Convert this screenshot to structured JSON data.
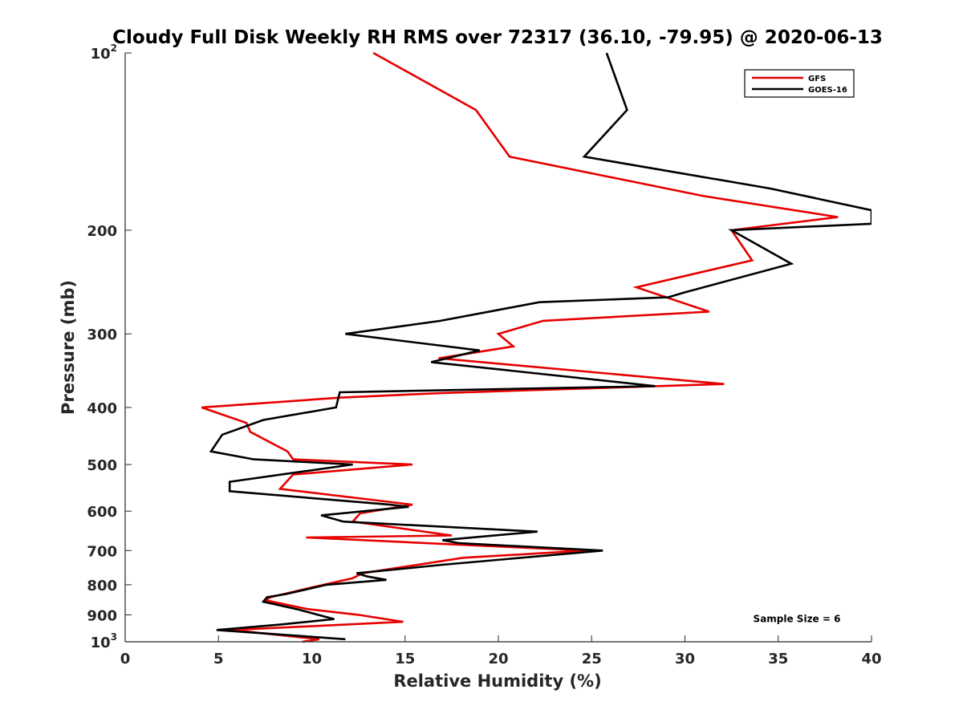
{
  "chart_data": {
    "type": "line",
    "title": "Cloudy Full Disk Weekly RH RMS over 72317 (36.10, -79.95) @ 2020-06-13",
    "xlabel": "Relative Humidity (%)",
    "ylabel": "Pressure (mb)",
    "xlim": [
      0,
      40
    ],
    "ylim": [
      100,
      1000
    ],
    "yscale": "log",
    "y_reversed": true,
    "grid": false,
    "legend_position": "top-right",
    "x_ticks": [
      {
        "value": 0,
        "label": "0"
      },
      {
        "value": 5,
        "label": "5"
      },
      {
        "value": 10,
        "label": "10"
      },
      {
        "value": 15,
        "label": "15"
      },
      {
        "value": 20,
        "label": "20"
      },
      {
        "value": 25,
        "label": "25"
      },
      {
        "value": 30,
        "label": "30"
      },
      {
        "value": 35,
        "label": "35"
      },
      {
        "value": 40,
        "label": "40"
      }
    ],
    "y_ticks": [
      {
        "value": 100,
        "base": "10",
        "exp": "2"
      },
      {
        "value": 200,
        "base": "200",
        "exp": ""
      },
      {
        "value": 300,
        "base": "300",
        "exp": ""
      },
      {
        "value": 400,
        "base": "400",
        "exp": ""
      },
      {
        "value": 500,
        "base": "500",
        "exp": ""
      },
      {
        "value": 600,
        "base": "600",
        "exp": ""
      },
      {
        "value": 700,
        "base": "700",
        "exp": ""
      },
      {
        "value": 800,
        "base": "800",
        "exp": ""
      },
      {
        "value": 900,
        "base": "900",
        "exp": ""
      },
      {
        "value": 1000,
        "base": "10",
        "exp": "3"
      }
    ],
    "series": [
      {
        "name": "GFS",
        "color": "#e60000",
        "points": [
          [
            13.3,
            100
          ],
          [
            18.8,
            125
          ],
          [
            20.6,
            150
          ],
          [
            31.0,
            175
          ],
          [
            38.2,
            190
          ],
          [
            32.5,
            200
          ],
          [
            33.6,
            225
          ],
          [
            27.4,
            250
          ],
          [
            31.3,
            275
          ],
          [
            22.4,
            285
          ],
          [
            20.0,
            300
          ],
          [
            20.8,
            315
          ],
          [
            16.8,
            330
          ],
          [
            32.1,
            365
          ],
          [
            17.0,
            378
          ],
          [
            11.5,
            385
          ],
          [
            4.1,
            400
          ],
          [
            6.5,
            425
          ],
          [
            6.7,
            440
          ],
          [
            8.7,
            475
          ],
          [
            9.0,
            490
          ],
          [
            15.4,
            500
          ],
          [
            9.0,
            520
          ],
          [
            8.3,
            550
          ],
          [
            15.4,
            585
          ],
          [
            12.6,
            605
          ],
          [
            12.2,
            625
          ],
          [
            17.5,
            660
          ],
          [
            9.7,
            665
          ],
          [
            24.7,
            700
          ],
          [
            18.1,
            720
          ],
          [
            12.7,
            765
          ],
          [
            12.2,
            780
          ],
          [
            9.9,
            810
          ],
          [
            7.8,
            840
          ],
          [
            7.5,
            850
          ],
          [
            9.8,
            880
          ],
          [
            12.5,
            900
          ],
          [
            14.9,
            925
          ],
          [
            5.7,
            955
          ],
          [
            10.4,
            990
          ],
          [
            9.5,
            1000
          ]
        ]
      },
      {
        "name": "GOES-16",
        "color": "#000000",
        "points": [
          [
            25.8,
            100
          ],
          [
            26.9,
            125
          ],
          [
            24.6,
            150
          ],
          [
            34.6,
            170
          ],
          [
            40.0,
            185
          ],
          [
            40.0,
            195
          ],
          [
            32.5,
            200
          ],
          [
            35.7,
            228
          ],
          [
            30.0,
            255
          ],
          [
            29.1,
            260
          ],
          [
            22.2,
            265
          ],
          [
            16.9,
            285
          ],
          [
            11.8,
            300
          ],
          [
            19.0,
            320
          ],
          [
            16.4,
            335
          ],
          [
            28.4,
            368
          ],
          [
            11.5,
            377
          ],
          [
            11.3,
            400
          ],
          [
            7.4,
            420
          ],
          [
            5.2,
            445
          ],
          [
            4.6,
            475
          ],
          [
            6.9,
            490
          ],
          [
            12.2,
            500
          ],
          [
            5.6,
            535
          ],
          [
            5.6,
            555
          ],
          [
            14.2,
            585
          ],
          [
            15.2,
            590
          ],
          [
            10.5,
            610
          ],
          [
            11.7,
            625
          ],
          [
            22.1,
            650
          ],
          [
            17.0,
            672
          ],
          [
            17.9,
            680
          ],
          [
            25.6,
            700
          ],
          [
            17.0,
            740
          ],
          [
            12.4,
            765
          ],
          [
            13.0,
            775
          ],
          [
            14.0,
            785
          ],
          [
            10.8,
            800
          ],
          [
            8.6,
            830
          ],
          [
            7.6,
            840
          ],
          [
            7.4,
            855
          ],
          [
            9.2,
            880
          ],
          [
            11.2,
            915
          ],
          [
            8.3,
            935
          ],
          [
            4.9,
            955
          ],
          [
            11.8,
            990
          ]
        ]
      }
    ],
    "annotations": [
      {
        "text": "Sample Size = 6",
        "x": 36.0,
        "y": 915
      }
    ]
  }
}
